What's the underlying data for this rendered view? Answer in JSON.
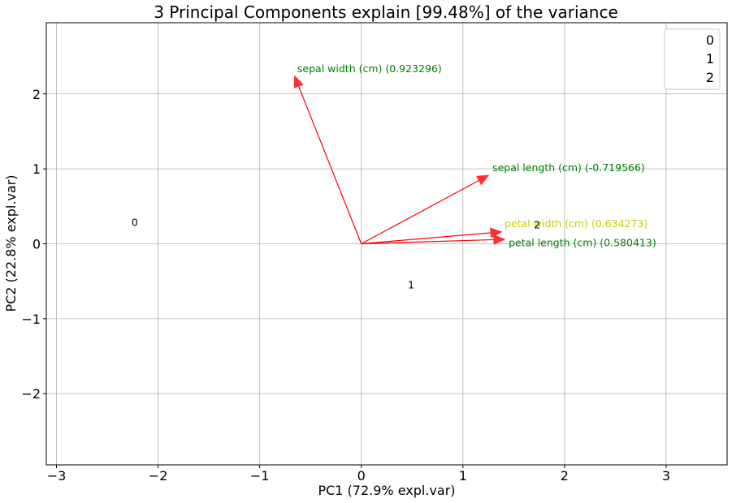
{
  "chart_data": {
    "type": "scatter",
    "subtype": "pca-biplot",
    "title": "3 Principal Components explain [99.48%] of the variance",
    "xlabel": "PC1 (72.9% expl.var)",
    "ylabel": "PC2 (22.8% expl.var)",
    "xlim": [
      -3.1,
      3.6
    ],
    "ylim": [
      -2.95,
      2.95
    ],
    "xticks": [
      -3,
      -2,
      -1,
      0,
      1,
      2,
      3
    ],
    "yticks": [
      -2,
      -1,
      0,
      1,
      2
    ],
    "grid": true,
    "loadings": [
      {
        "label": "sepal width (cm) (0.923296)",
        "x": -0.66,
        "y": 2.25,
        "label_x": -0.63,
        "label_y": 2.29,
        "color": "#008000"
      },
      {
        "label": "sepal length (cm) (-0.719566)",
        "x": 1.26,
        "y": 0.92,
        "label_x": 1.29,
        "label_y": 0.97,
        "color": "#008000"
      },
      {
        "label": "petal width (cm) (0.634273)",
        "x": 1.39,
        "y": 0.16,
        "label_x": 1.41,
        "label_y": 0.22,
        "color": "#cccc00"
      },
      {
        "label": "petal length (cm) (0.580413)",
        "x": 1.42,
        "y": 0.06,
        "label_x": 1.45,
        "label_y": -0.03,
        "color": "#008000"
      }
    ],
    "centroids": [
      {
        "label": "0",
        "x": -2.23,
        "y": 0.28
      },
      {
        "label": "1",
        "x": 0.49,
        "y": -0.55
      },
      {
        "label": "2",
        "x": 1.73,
        "y": 0.25
      }
    ],
    "legend": {
      "placement": "top-right",
      "entries": [
        "0",
        "1",
        "2"
      ]
    },
    "colors": {
      "arrow": "#ff0000",
      "grid": "#b0b0b0"
    }
  }
}
